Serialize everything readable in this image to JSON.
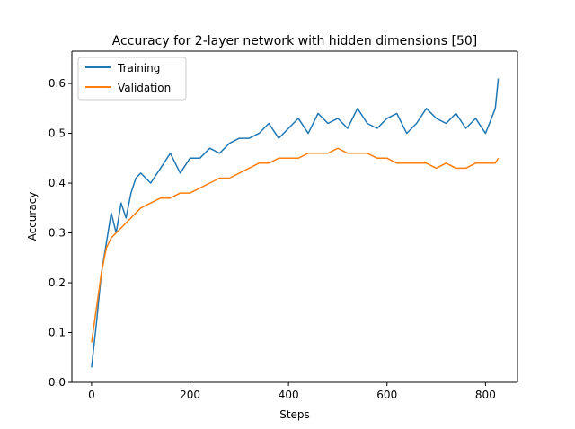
{
  "chart_data": {
    "type": "line",
    "title": "Accuracy for 2-layer network with hidden dimensions [50]",
    "xlabel": "Steps",
    "ylabel": "Accuracy",
    "xlim": [
      -40,
      865
    ],
    "ylim": [
      0.0,
      0.665
    ],
    "xticks": [
      0,
      200,
      400,
      600,
      800
    ],
    "xtick_labels": [
      "0",
      "200",
      "400",
      "600",
      "800"
    ],
    "yticks": [
      0.0,
      0.1,
      0.2,
      0.3,
      0.4,
      0.5,
      0.6
    ],
    "ytick_labels": [
      "0.0",
      "0.1",
      "0.2",
      "0.3",
      "0.4",
      "0.5",
      "0.6"
    ],
    "grid": false,
    "legend_position": "top-left",
    "series": [
      {
        "name": "Training",
        "color": "#1f77b4",
        "x": [
          0,
          10,
          20,
          30,
          40,
          50,
          60,
          70,
          80,
          90,
          100,
          120,
          140,
          160,
          180,
          200,
          220,
          240,
          260,
          280,
          300,
          320,
          340,
          360,
          380,
          400,
          420,
          440,
          460,
          480,
          500,
          520,
          540,
          560,
          580,
          600,
          620,
          640,
          660,
          680,
          700,
          720,
          740,
          760,
          780,
          800,
          820,
          826
        ],
        "y": [
          0.03,
          0.12,
          0.22,
          0.28,
          0.34,
          0.3,
          0.36,
          0.33,
          0.38,
          0.41,
          0.42,
          0.4,
          0.43,
          0.46,
          0.42,
          0.45,
          0.45,
          0.47,
          0.46,
          0.48,
          0.49,
          0.49,
          0.5,
          0.52,
          0.49,
          0.51,
          0.53,
          0.5,
          0.54,
          0.52,
          0.53,
          0.51,
          0.55,
          0.52,
          0.51,
          0.53,
          0.54,
          0.5,
          0.52,
          0.55,
          0.53,
          0.52,
          0.54,
          0.51,
          0.53,
          0.5,
          0.55,
          0.61
        ]
      },
      {
        "name": "Validation",
        "color": "#ff7f0e",
        "x": [
          0,
          10,
          20,
          30,
          40,
          50,
          60,
          70,
          80,
          90,
          100,
          120,
          140,
          160,
          180,
          200,
          220,
          240,
          260,
          280,
          300,
          320,
          340,
          360,
          380,
          400,
          420,
          440,
          460,
          480,
          500,
          520,
          540,
          560,
          580,
          600,
          620,
          640,
          660,
          680,
          700,
          720,
          740,
          760,
          780,
          800,
          820,
          826
        ],
        "y": [
          0.08,
          0.15,
          0.22,
          0.27,
          0.29,
          0.3,
          0.31,
          0.32,
          0.33,
          0.34,
          0.35,
          0.36,
          0.37,
          0.37,
          0.38,
          0.38,
          0.39,
          0.4,
          0.41,
          0.41,
          0.42,
          0.43,
          0.44,
          0.44,
          0.45,
          0.45,
          0.45,
          0.46,
          0.46,
          0.46,
          0.47,
          0.46,
          0.46,
          0.46,
          0.45,
          0.45,
          0.44,
          0.44,
          0.44,
          0.44,
          0.43,
          0.44,
          0.43,
          0.43,
          0.44,
          0.44,
          0.44,
          0.45
        ]
      }
    ]
  }
}
